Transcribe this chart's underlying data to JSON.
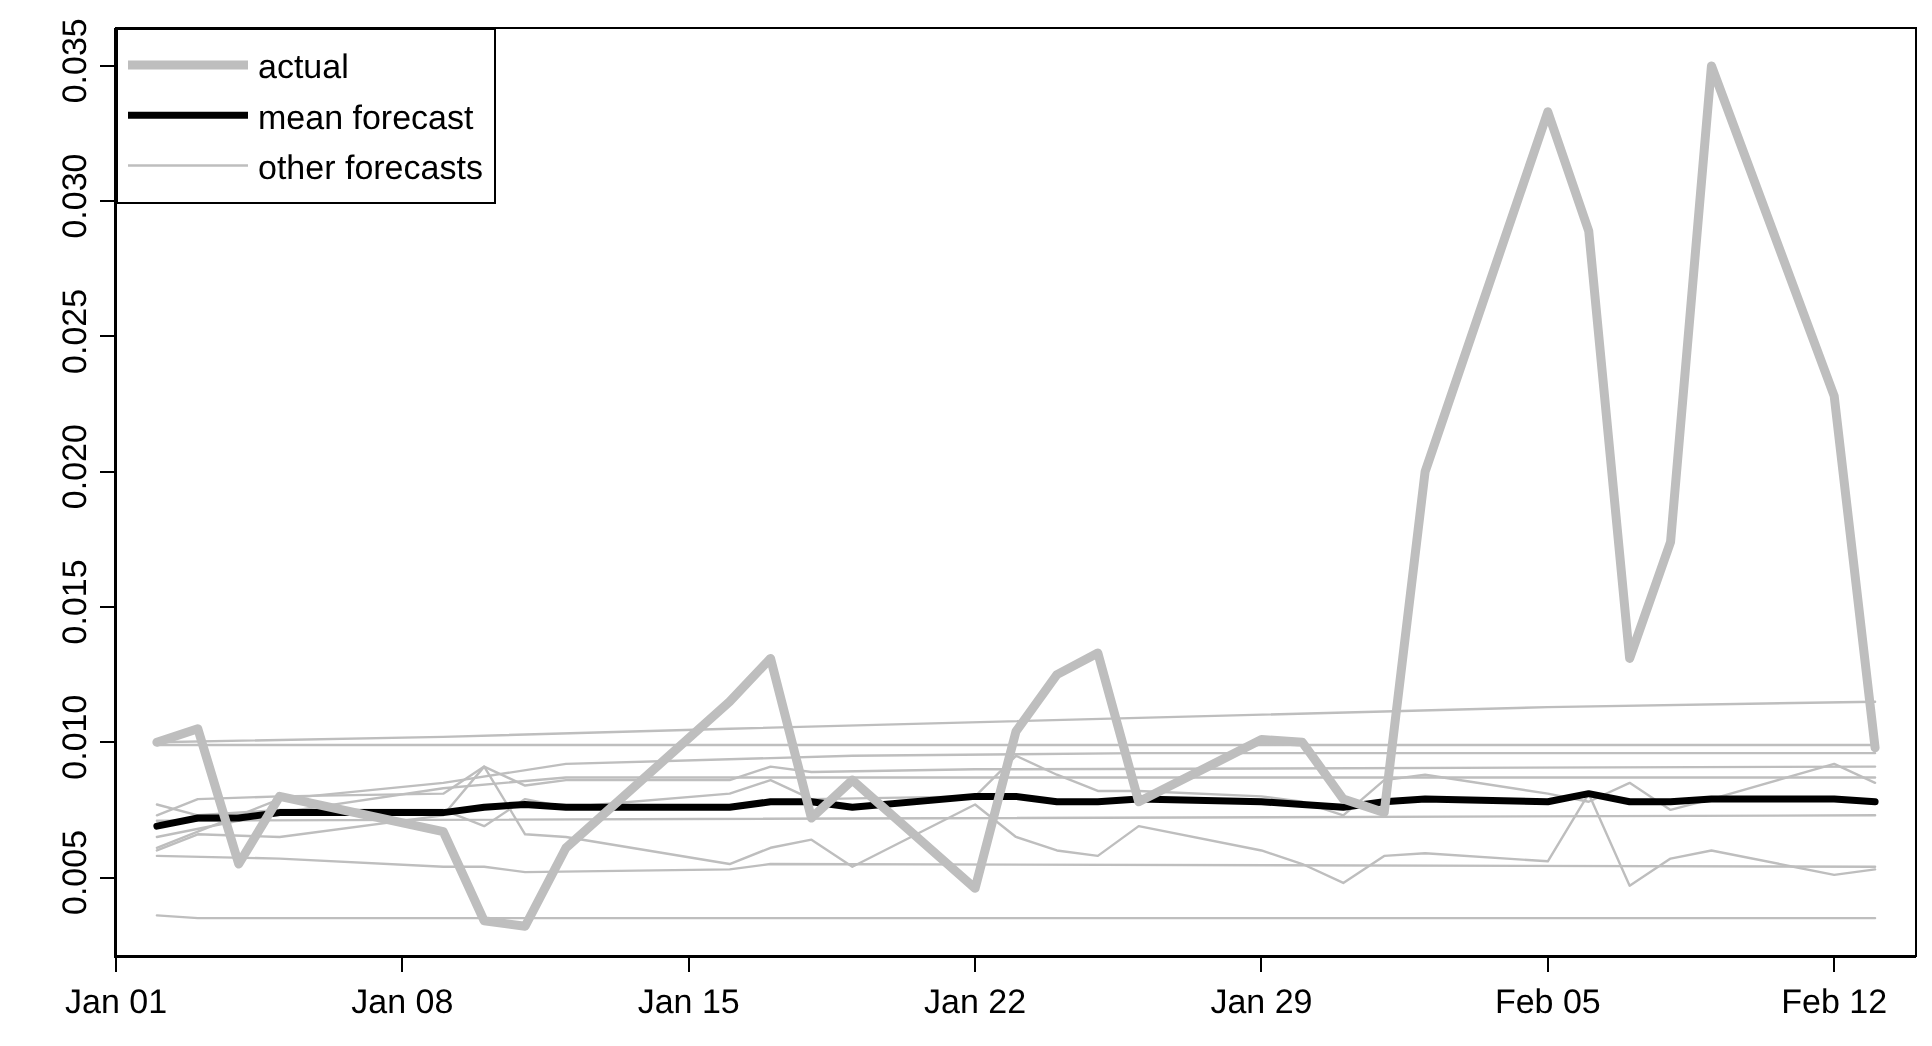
{
  "chart_data": {
    "type": "line",
    "legend": "top left",
    "grid": false,
    "line_style": "solid",
    "marker": "none",
    "xlim": [
      "--01-01",
      "--02-14"
    ],
    "xticks": [
      {
        "value": "--01-01",
        "label": "Jan 01"
      },
      {
        "value": "--01-08",
        "label": "Jan 08"
      },
      {
        "value": "--01-15",
        "label": "Jan 15"
      },
      {
        "value": "--01-22",
        "label": "Jan 22"
      },
      {
        "value": "--01-29",
        "label": "Jan 29"
      },
      {
        "value": "--02-05",
        "label": "Feb 05"
      },
      {
        "value": "--02-12",
        "label": "Feb 12"
      }
    ],
    "ylim": [
      0.0021,
      0.0364
    ],
    "yticks": [
      {
        "value": 0.005,
        "label": "0.005"
      },
      {
        "value": 0.01,
        "label": "0.010"
      },
      {
        "value": 0.015,
        "label": "0.015"
      },
      {
        "value": 0.02,
        "label": "0.020"
      },
      {
        "value": 0.025,
        "label": "0.025"
      },
      {
        "value": 0.03,
        "label": "0.030"
      },
      {
        "value": 0.035,
        "label": "0.035"
      }
    ],
    "series": [
      {
        "name": "actual",
        "color": "#bebebe",
        "x": [
          "--01-02",
          "--01-03",
          "--01-04",
          "--01-05",
          "--01-09",
          "--01-10",
          "--01-11",
          "--01-12",
          "--01-16",
          "--01-17",
          "--01-18",
          "--01-19",
          "--01-22",
          "--01-23",
          "--01-24",
          "--01-25",
          "--01-26",
          "--01-29",
          "--01-30",
          "--01-31",
          "--02-01",
          "--02-02",
          "--02-05",
          "--02-06",
          "--02-07",
          "--02-08",
          "--02-09",
          "--02-12",
          "--02-13"
        ],
        "values": [
          0.01,
          0.0105,
          0.0055,
          0.008,
          0.0067,
          0.0034,
          0.0032,
          0.0061,
          0.0115,
          0.0131,
          0.0072,
          0.0086,
          0.0046,
          0.0104,
          0.0125,
          0.0133,
          0.0078,
          0.0101,
          0.01,
          0.0079,
          0.0074,
          0.02,
          0.0333,
          0.0289,
          0.0131,
          0.0174,
          0.035,
          0.0228,
          0.0098
        ]
      },
      {
        "name": "mean forecast",
        "color": "#000000",
        "x": [
          "--01-02",
          "--01-03",
          "--01-04",
          "--01-05",
          "--01-09",
          "--01-10",
          "--01-11",
          "--01-12",
          "--01-16",
          "--01-17",
          "--01-18",
          "--01-19",
          "--01-22",
          "--01-23",
          "--01-24",
          "--01-25",
          "--01-26",
          "--01-29",
          "--01-30",
          "--01-31",
          "--02-01",
          "--02-02",
          "--02-05",
          "--02-06",
          "--02-07",
          "--02-08",
          "--02-09",
          "--02-12",
          "--02-13"
        ],
        "values": [
          0.0069,
          0.0072,
          0.0072,
          0.0074,
          0.0074,
          0.0076,
          0.0077,
          0.0076,
          0.0076,
          0.0078,
          0.0078,
          0.0076,
          0.008,
          0.008,
          0.0078,
          0.0078,
          0.0079,
          0.0078,
          0.0077,
          0.0076,
          0.0078,
          0.0079,
          0.0078,
          0.0081,
          0.0078,
          0.0078,
          0.0079,
          0.0079,
          0.0078
        ]
      },
      {
        "name": "other forecasts",
        "color": "#bebebe",
        "x": [
          "--01-02",
          "--01-09",
          "--01-16",
          "--01-26",
          "--02-05",
          "--02-13"
        ],
        "values": [
          0.01,
          0.0102,
          0.0105,
          0.0109,
          0.0113,
          0.0115
        ]
      },
      {
        "color": "#bebebe",
        "x": [
          "--01-02",
          "--02-13"
        ],
        "values": [
          0.0099,
          0.0099
        ]
      },
      {
        "color": "#bebebe",
        "x": [
          "--01-02",
          "--01-05",
          "--01-09",
          "--01-12",
          "--01-19",
          "--01-26",
          "--02-13"
        ],
        "values": [
          0.0061,
          0.0079,
          0.0085,
          0.0092,
          0.0095,
          0.0096,
          0.0096
        ]
      },
      {
        "color": "#bebebe",
        "x": [
          "--01-02",
          "--01-03",
          "--01-05",
          "--01-09",
          "--01-10",
          "--01-11",
          "--01-12",
          "--01-16",
          "--01-17",
          "--01-18",
          "--01-22",
          "--02-13"
        ],
        "values": [
          0.0073,
          0.0079,
          0.008,
          0.0081,
          0.0091,
          0.0084,
          0.0086,
          0.0086,
          0.0091,
          0.0089,
          0.009,
          0.0091
        ]
      },
      {
        "color": "#bebebe",
        "x": [
          "--01-02",
          "--01-05",
          "--01-09",
          "--01-12",
          "--02-13"
        ],
        "values": [
          0.0065,
          0.0074,
          0.0083,
          0.0087,
          0.0087
        ]
      },
      {
        "color": "#bebebe",
        "x": [
          "--01-02",
          "--01-03",
          "--01-05",
          "--01-09",
          "--01-10",
          "--01-11",
          "--01-12",
          "--01-16",
          "--01-17",
          "--01-18",
          "--01-22",
          "--01-23",
          "--01-24",
          "--01-25",
          "--01-26",
          "--01-29",
          "--01-30",
          "--01-31",
          "--02-01",
          "--02-02",
          "--02-05",
          "--02-06",
          "--02-07",
          "--02-08",
          "--02-09",
          "--02-12",
          "--02-13"
        ],
        "values": [
          0.0077,
          0.0073,
          0.0075,
          0.0075,
          0.0069,
          0.0079,
          0.0076,
          0.0081,
          0.0086,
          0.0079,
          0.008,
          0.0095,
          0.0088,
          0.0082,
          0.0082,
          0.008,
          0.0078,
          0.0073,
          0.0086,
          0.0088,
          0.0081,
          0.0078,
          0.0085,
          0.0075,
          0.0079,
          0.0092,
          0.0085
        ]
      },
      {
        "color": "#bebebe",
        "x": [
          "--01-02",
          "--02-13"
        ],
        "values": [
          0.0071,
          0.0073
        ]
      },
      {
        "color": "#bebebe",
        "x": [
          "--01-02",
          "--01-03",
          "--01-05",
          "--01-09",
          "--01-10",
          "--01-11",
          "--01-12",
          "--01-16",
          "--01-17",
          "--01-18",
          "--01-19",
          "--01-22",
          "--01-23",
          "--01-24",
          "--01-25",
          "--01-26",
          "--01-29",
          "--01-30",
          "--01-31",
          "--02-01",
          "--02-02",
          "--02-05",
          "--02-06",
          "--02-07",
          "--02-08",
          "--02-09",
          "--02-12",
          "--02-13"
        ],
        "values": [
          0.006,
          0.0066,
          0.0065,
          0.0073,
          0.0091,
          0.0066,
          0.0065,
          0.0055,
          0.0061,
          0.0064,
          0.0054,
          0.0077,
          0.0065,
          0.006,
          0.0058,
          0.0069,
          0.006,
          0.0055,
          0.0048,
          0.0058,
          0.0059,
          0.0056,
          0.0081,
          0.0047,
          0.0057,
          0.006,
          0.0051,
          0.0053
        ]
      },
      {
        "color": "#bebebe",
        "x": [
          "--01-02",
          "--01-05",
          "--01-09",
          "--01-10",
          "--01-11",
          "--01-16",
          "--01-17",
          "--02-13"
        ],
        "values": [
          0.0058,
          0.0057,
          0.0054,
          0.0054,
          0.0052,
          0.0053,
          0.0055,
          0.0054
        ]
      },
      {
        "color": "#bebebe",
        "x": [
          "--01-02",
          "--01-03",
          "--02-13"
        ],
        "values": [
          0.0036,
          0.0035,
          0.0035
        ]
      }
    ]
  }
}
